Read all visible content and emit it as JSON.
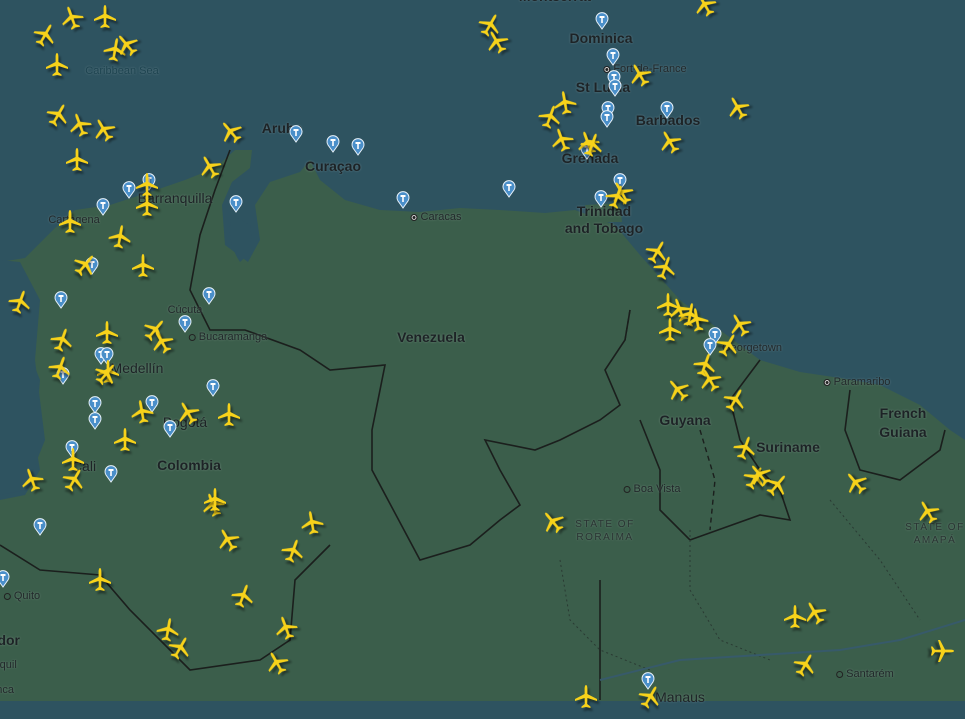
{
  "map": {
    "ocean_color": "#2e5360",
    "land_color": "#3b5e4b",
    "aircraft_color": "#f7d21a",
    "airport_pin_color": "#4a8fc9",
    "aircraft_icon": "airplane-icon",
    "airport_icon": "control-tower-pin-icon"
  },
  "labels": {
    "sea": {
      "caribbean": "Caribbean Sea"
    },
    "countries": {
      "venezuela": "Venezuela",
      "colombia": "Colombia",
      "guyana": "Guyana",
      "suriname": "Suriname",
      "french_guiana_1": "French",
      "french_guiana_2": "Guiana",
      "ecuador": "Ecuador"
    },
    "islands": {
      "dominica": "Dominica",
      "st_lucia": "St Lucia",
      "barbados": "Barbados",
      "grenada": "Grenada",
      "trinidad_1": "Trinidad",
      "trinidad_2": "and Tobago",
      "aruba": "Aruba",
      "curacao": "Curaçao",
      "montserrat": "Montserrat"
    },
    "cities": {
      "barranquilla": "Barranquilla",
      "cartagena": "Cartagena",
      "caracas": "Caracas",
      "cucuta": "Cúcuta",
      "bucaramanga": "Bucaramanga",
      "medellin": "Medellín",
      "bogota": "Bogotá",
      "cali": "Cali",
      "quito": "Quito",
      "guayaquil": "Guayaquil",
      "cuenca": "Cuenca",
      "georgetown": "Georgetown",
      "paramaribo": "Paramaribo",
      "boa_vista": "Boa Vista",
      "santarem": "Santarém",
      "manaus": "Manaus",
      "fort_de_france": "Fort-de-France"
    },
    "states": {
      "roraima_1": "STATE OF",
      "roraima_2": "RORAIMA",
      "amapa_1": "STATE OF",
      "amapa_2": "AMAPÁ"
    }
  }
}
